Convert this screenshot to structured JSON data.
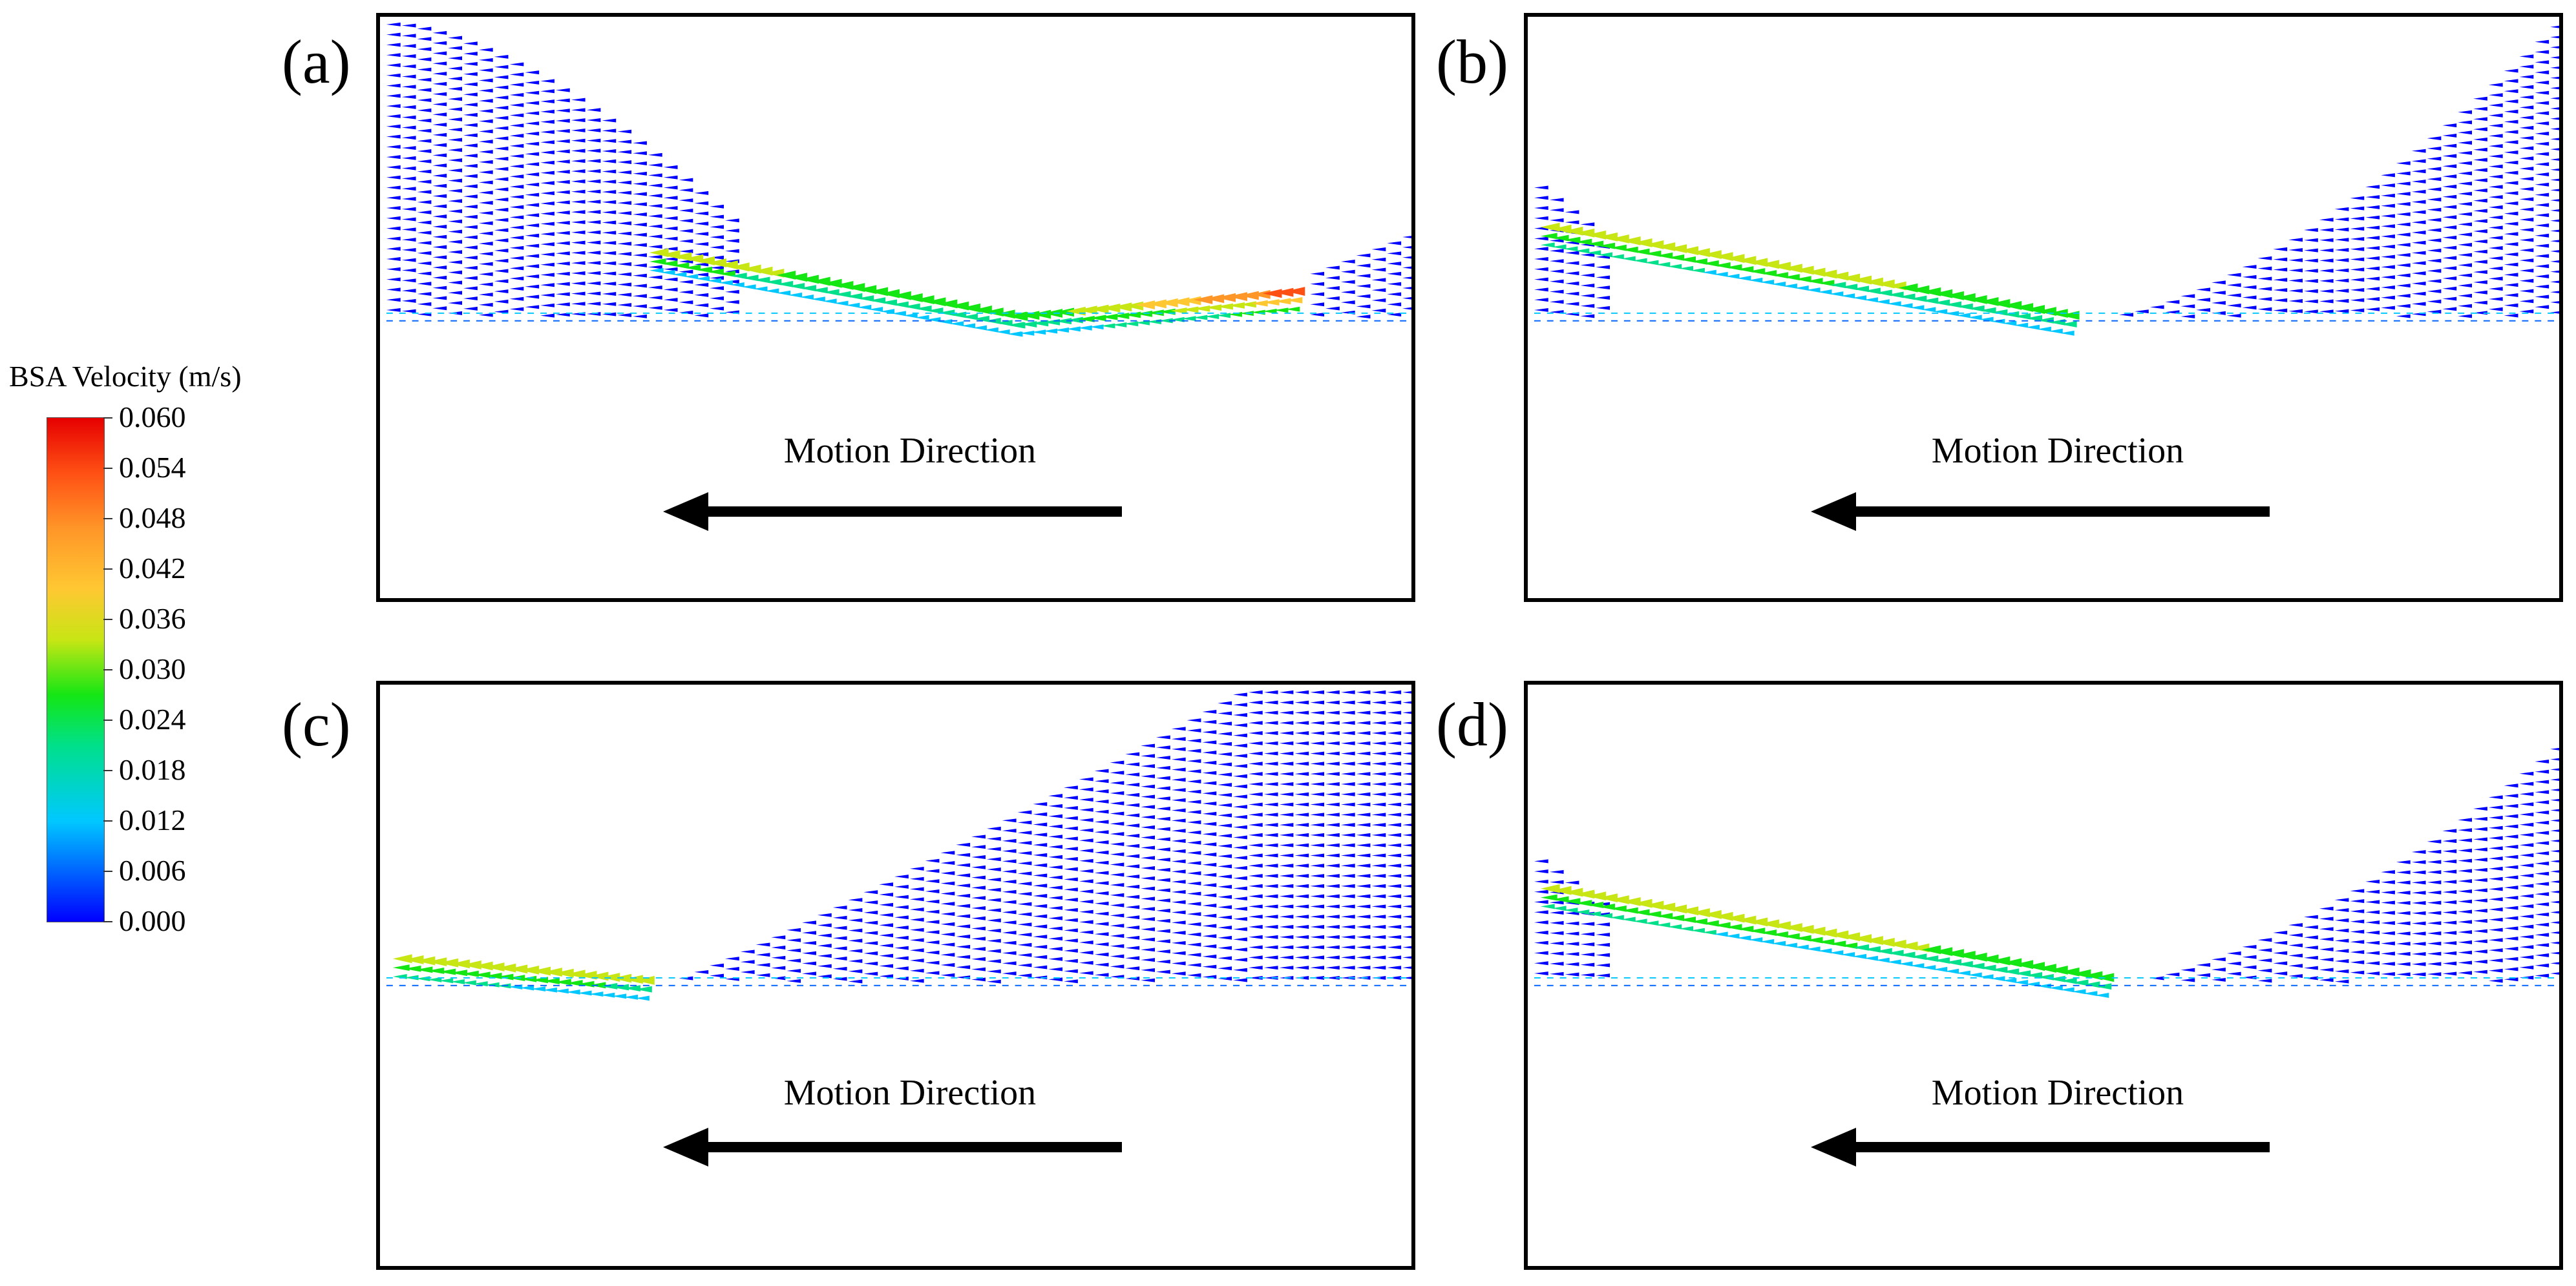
{
  "colorbar": {
    "title": "BSA Velocity (m/s)",
    "ticks": [
      "0.060",
      "0.054",
      "0.048",
      "0.042",
      "0.036",
      "0.030",
      "0.024",
      "0.018",
      "0.012",
      "0.006",
      "0.000"
    ],
    "colors": [
      "#0000ff",
      "#0064ff",
      "#00c8ff",
      "#00e08a",
      "#14e614",
      "#c8e614",
      "#ffc832",
      "#ff9628",
      "#ff5014",
      "#e60000"
    ]
  },
  "panels": [
    {
      "label": "(a)",
      "motion_text": "Motion Direction",
      "case": "a"
    },
    {
      "label": "(b)",
      "motion_text": "Motion Direction",
      "case": "b"
    },
    {
      "label": "(c)",
      "motion_text": "Motion Direction",
      "case": "c"
    },
    {
      "label": "(d)",
      "motion_text": "Motion Direction",
      "case": "d"
    }
  ]
}
